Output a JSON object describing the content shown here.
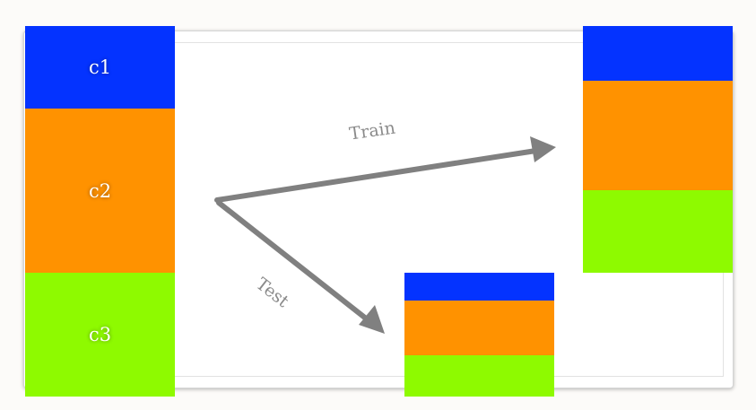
{
  "colors": {
    "c1": "#0433ff",
    "c2": "#ff9200",
    "c3": "#8efa00",
    "arrow": "#808080"
  },
  "full_dataset": {
    "segments": [
      {
        "label": "c1",
        "color": "c1"
      },
      {
        "label": "c2",
        "color": "c2"
      },
      {
        "label": "c3",
        "color": "c3"
      }
    ]
  },
  "arrows": {
    "train_label": "Train",
    "test_label": "Test"
  }
}
